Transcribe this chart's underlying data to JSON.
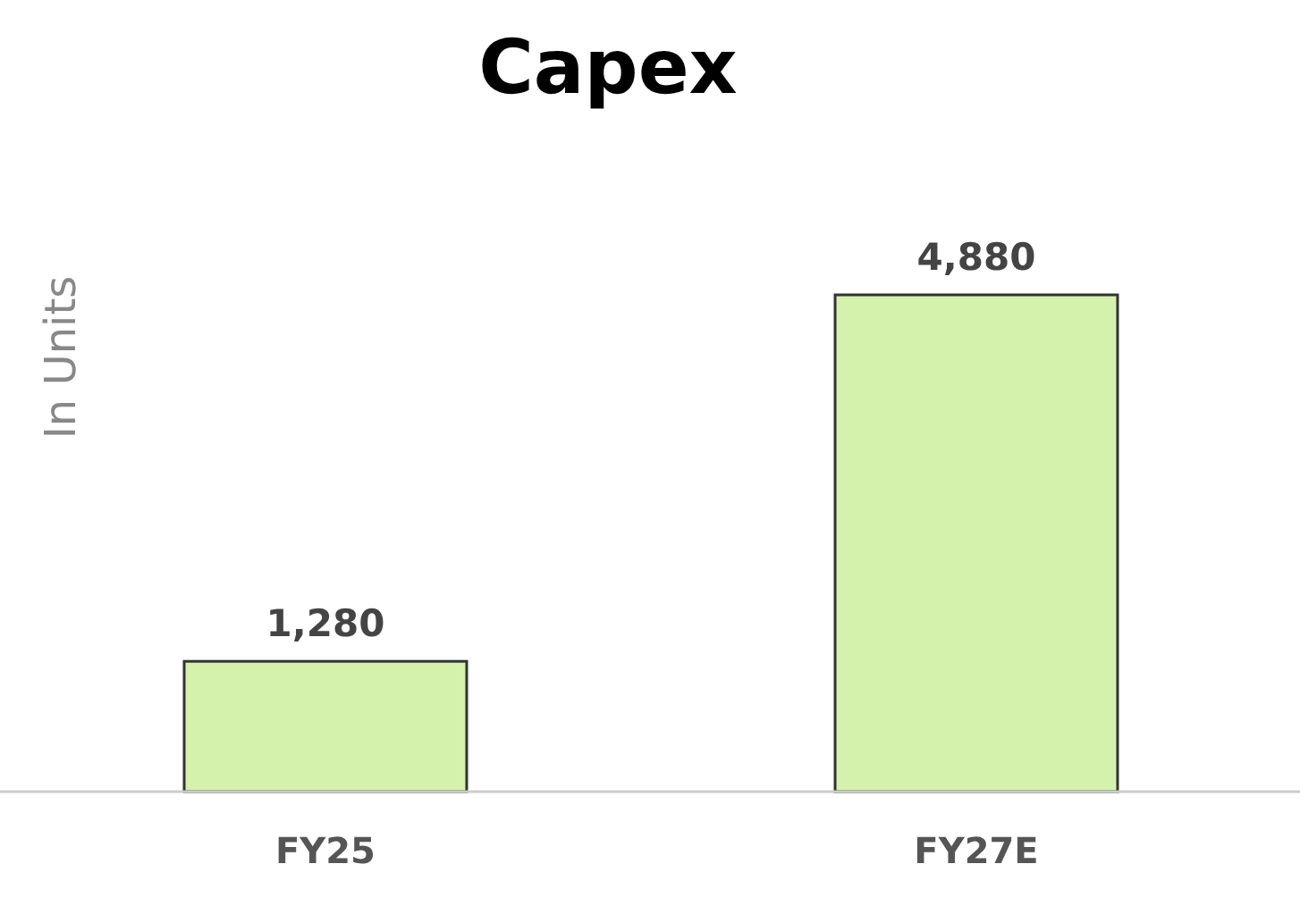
{
  "chart_data": {
    "type": "bar",
    "title": "Capex",
    "ylabel": "In Units",
    "categories": [
      "FY25",
      "FY27E"
    ],
    "values": [
      1280,
      4880
    ],
    "value_labels": [
      "1,280",
      "4,880"
    ],
    "color": "#d4f2ab",
    "relative": false
  }
}
